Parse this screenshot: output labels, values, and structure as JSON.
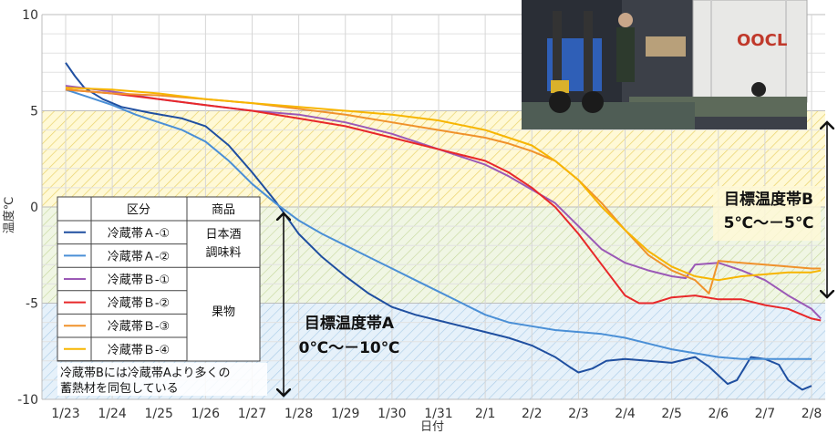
{
  "chart_data": {
    "type": "line",
    "xlabel": "日付",
    "ylabel": "温度℃",
    "ylim": [
      -10,
      10
    ],
    "yticks": [
      10,
      5,
      0,
      -5,
      -10
    ],
    "xticks": [
      "1/23",
      "1/24",
      "1/25",
      "1/26",
      "1/27",
      "1/28",
      "1/29",
      "1/30",
      "1/31",
      "2/1",
      "2/2",
      "2/3",
      "2/4",
      "2/5",
      "2/6",
      "2/7",
      "2/8"
    ],
    "grid": true,
    "series": [
      {
        "name": "冷蔵帯Ａ-①",
        "color": "#1f4fa0",
        "points": [
          [
            0,
            7.5
          ],
          [
            0.2,
            6.8
          ],
          [
            0.4,
            6.2
          ],
          [
            0.8,
            5.6
          ],
          [
            1.2,
            5.2
          ],
          [
            1.8,
            4.9
          ],
          [
            2.5,
            4.6
          ],
          [
            3.0,
            4.2
          ],
          [
            3.5,
            3.2
          ],
          [
            4.0,
            1.8
          ],
          [
            4.5,
            0.3
          ],
          [
            5.0,
            -1.4
          ],
          [
            5.5,
            -2.6
          ],
          [
            6.0,
            -3.6
          ],
          [
            6.5,
            -4.5
          ],
          [
            7.0,
            -5.2
          ],
          [
            7.5,
            -5.6
          ],
          [
            8.0,
            -5.9
          ],
          [
            8.5,
            -6.2
          ],
          [
            9.0,
            -6.5
          ],
          [
            9.5,
            -6.8
          ],
          [
            10.0,
            -7.2
          ],
          [
            10.5,
            -7.8
          ],
          [
            10.8,
            -8.3
          ],
          [
            11.0,
            -8.6
          ],
          [
            11.3,
            -8.4
          ],
          [
            11.6,
            -8.0
          ],
          [
            12.0,
            -7.9
          ],
          [
            12.5,
            -8.0
          ],
          [
            13.0,
            -8.1
          ],
          [
            13.5,
            -7.8
          ],
          [
            13.8,
            -8.3
          ],
          [
            14.2,
            -9.2
          ],
          [
            14.4,
            -9.0
          ],
          [
            14.7,
            -7.8
          ],
          [
            15.0,
            -7.9
          ],
          [
            15.3,
            -8.2
          ],
          [
            15.5,
            -9.0
          ],
          [
            15.8,
            -9.5
          ],
          [
            16.0,
            -9.3
          ]
        ]
      },
      {
        "name": "冷蔵帯Ａ-②",
        "color": "#4a8fd6",
        "points": [
          [
            0,
            6.1
          ],
          [
            0.5,
            5.7
          ],
          [
            1.0,
            5.3
          ],
          [
            1.5,
            4.8
          ],
          [
            2.0,
            4.4
          ],
          [
            2.5,
            4.0
          ],
          [
            3.0,
            3.4
          ],
          [
            3.5,
            2.4
          ],
          [
            4.0,
            1.2
          ],
          [
            4.5,
            0.2
          ],
          [
            5.0,
            -0.7
          ],
          [
            5.5,
            -1.4
          ],
          [
            6.0,
            -2.0
          ],
          [
            6.5,
            -2.6
          ],
          [
            7.0,
            -3.2
          ],
          [
            7.5,
            -3.8
          ],
          [
            8.0,
            -4.4
          ],
          [
            8.5,
            -5.0
          ],
          [
            9.0,
            -5.6
          ],
          [
            9.5,
            -6.0
          ],
          [
            10.0,
            -6.2
          ],
          [
            10.5,
            -6.4
          ],
          [
            11.0,
            -6.5
          ],
          [
            11.5,
            -6.6
          ],
          [
            12.0,
            -6.8
          ],
          [
            12.5,
            -7.1
          ],
          [
            13.0,
            -7.4
          ],
          [
            13.5,
            -7.6
          ],
          [
            14.0,
            -7.8
          ],
          [
            14.5,
            -7.9
          ],
          [
            15.0,
            -7.9
          ],
          [
            15.5,
            -7.9
          ],
          [
            16.0,
            -7.9
          ]
        ]
      },
      {
        "name": "冷蔵帯Ｂ-①",
        "color": "#9b59b6",
        "points": [
          [
            0,
            6.3
          ],
          [
            1,
            6.0
          ],
          [
            2,
            5.6
          ],
          [
            3,
            5.3
          ],
          [
            4,
            5.0
          ],
          [
            5,
            4.8
          ],
          [
            6,
            4.4
          ],
          [
            7,
            3.8
          ],
          [
            8,
            3.0
          ],
          [
            9,
            2.2
          ],
          [
            9.5,
            1.6
          ],
          [
            10,
            0.9
          ],
          [
            10.5,
            0.2
          ],
          [
            11,
            -1.0
          ],
          [
            11.5,
            -2.2
          ],
          [
            12,
            -2.9
          ],
          [
            12.5,
            -3.3
          ],
          [
            13,
            -3.6
          ],
          [
            13.3,
            -3.7
          ],
          [
            13.5,
            -3.0
          ],
          [
            14,
            -2.9
          ],
          [
            14.5,
            -3.3
          ],
          [
            15,
            -3.8
          ],
          [
            15.5,
            -4.6
          ],
          [
            16,
            -5.3
          ],
          [
            16.2,
            -5.8
          ]
        ]
      },
      {
        "name": "冷蔵帯Ｂ-②",
        "color": "#e8282a",
        "points": [
          [
            0,
            6.1
          ],
          [
            1,
            5.9
          ],
          [
            2,
            5.6
          ],
          [
            3,
            5.3
          ],
          [
            4,
            5.0
          ],
          [
            5,
            4.6
          ],
          [
            6,
            4.2
          ],
          [
            7,
            3.6
          ],
          [
            8,
            3.0
          ],
          [
            9,
            2.4
          ],
          [
            9.5,
            1.8
          ],
          [
            10,
            1.0
          ],
          [
            10.5,
            0.0
          ],
          [
            11,
            -1.4
          ],
          [
            11.5,
            -3.0
          ],
          [
            12,
            -4.6
          ],
          [
            12.3,
            -5.0
          ],
          [
            12.6,
            -5.0
          ],
          [
            13,
            -4.7
          ],
          [
            13.5,
            -4.6
          ],
          [
            14,
            -4.8
          ],
          [
            14.5,
            -4.8
          ],
          [
            15,
            -5.1
          ],
          [
            15.5,
            -5.3
          ],
          [
            16,
            -5.8
          ],
          [
            16.2,
            -5.9
          ]
        ]
      },
      {
        "name": "冷蔵帯Ｂ-③",
        "color": "#f0922b",
        "points": [
          [
            0,
            6.1
          ],
          [
            1,
            5.9
          ],
          [
            2,
            5.8
          ],
          [
            3,
            5.6
          ],
          [
            4,
            5.4
          ],
          [
            5,
            5.1
          ],
          [
            6,
            4.8
          ],
          [
            7,
            4.4
          ],
          [
            8,
            4.0
          ],
          [
            9,
            3.6
          ],
          [
            9.5,
            3.3
          ],
          [
            10,
            2.9
          ],
          [
            10.5,
            2.4
          ],
          [
            11,
            1.4
          ],
          [
            11.5,
            0.2
          ],
          [
            12,
            -1.2
          ],
          [
            12.5,
            -2.5
          ],
          [
            13,
            -3.3
          ],
          [
            13.5,
            -3.8
          ],
          [
            13.8,
            -4.5
          ],
          [
            14.0,
            -2.8
          ],
          [
            14.5,
            -2.9
          ],
          [
            15,
            -3.0
          ],
          [
            15.5,
            -3.1
          ],
          [
            16,
            -3.2
          ],
          [
            16.2,
            -3.2
          ]
        ]
      },
      {
        "name": "冷蔵帯Ｂ-④",
        "color": "#f7b500",
        "points": [
          [
            0,
            6.2
          ],
          [
            1,
            6.1
          ],
          [
            2,
            5.9
          ],
          [
            3,
            5.6
          ],
          [
            4,
            5.4
          ],
          [
            5,
            5.2
          ],
          [
            6,
            5.0
          ],
          [
            7,
            4.8
          ],
          [
            8,
            4.5
          ],
          [
            9,
            4.0
          ],
          [
            9.5,
            3.6
          ],
          [
            10,
            3.2
          ],
          [
            10.5,
            2.4
          ],
          [
            11,
            1.4
          ],
          [
            11.5,
            0.0
          ],
          [
            12,
            -1.2
          ],
          [
            12.5,
            -2.3
          ],
          [
            13,
            -3.1
          ],
          [
            13.5,
            -3.6
          ],
          [
            14,
            -3.8
          ],
          [
            14.5,
            -3.6
          ],
          [
            15,
            -3.5
          ],
          [
            15.5,
            -3.4
          ],
          [
            16,
            -3.4
          ],
          [
            16.2,
            -3.3
          ]
        ]
      }
    ],
    "bands": [
      {
        "label_line1": "目標温度帯B",
        "label_line2": "5℃～－5℃",
        "range": [
          -5,
          5
        ]
      },
      {
        "label_line1": "目標温度帯A",
        "label_line2": "0℃～－10℃",
        "range": [
          -10,
          0
        ]
      }
    ]
  },
  "legend_table": {
    "headers": [
      "区分",
      "商品"
    ],
    "rows": [
      {
        "label": "冷蔵帯Ａ-①",
        "color": "#1f4fa0"
      },
      {
        "label": "冷蔵帯Ａ-②",
        "color": "#4a8fd6"
      },
      {
        "label": "冷蔵帯Ｂ-①",
        "color": "#9b59b6"
      },
      {
        "label": "冷蔵帯Ｂ-②",
        "color": "#e8282a"
      },
      {
        "label": "冷蔵帯Ｂ-③",
        "color": "#f0922b"
      },
      {
        "label": "冷蔵帯Ｂ-④",
        "color": "#f7b500"
      }
    ],
    "product_a_line1": "日本酒",
    "product_a_line2": "調味料",
    "product_b": "果物"
  },
  "note_line1": "冷蔵帯Bには冷蔵帯Aより多くの",
  "note_line2": "蓄熱材を同包している",
  "photo": {
    "container_text": "OOCL"
  }
}
